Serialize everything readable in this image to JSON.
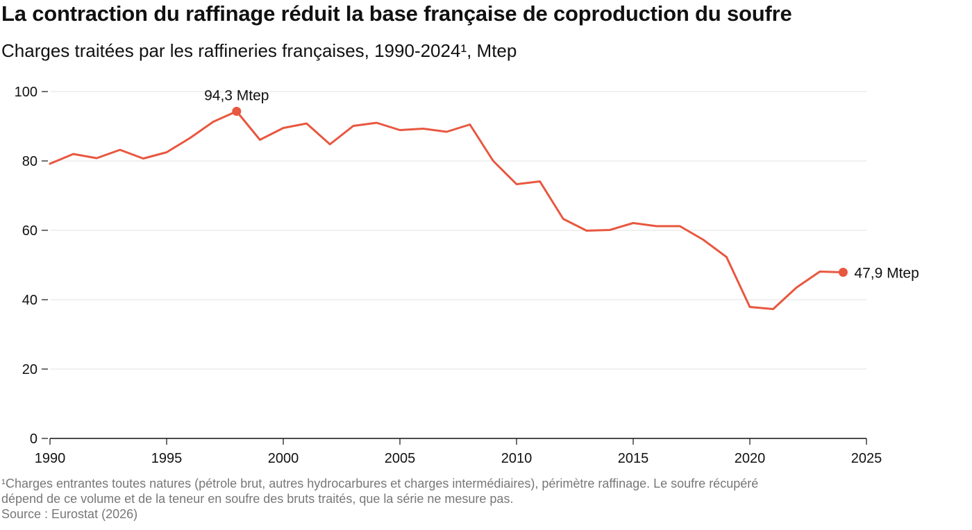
{
  "chart_data": {
    "type": "line",
    "title": "La contraction du raffinage réduit la base française de coproduction du soufre",
    "subtitle": "Charges traitées par les raffineries françaises, 1990-2024¹, Mtep",
    "xlim": [
      1990,
      2025
    ],
    "ylim": [
      0,
      100
    ],
    "x_ticks": [
      1990,
      1995,
      2000,
      2005,
      2010,
      2015,
      2020,
      2025
    ],
    "y_ticks": [
      0,
      20,
      40,
      60,
      80,
      100
    ],
    "grid": "horizontal",
    "series": [
      {
        "color": "#e8573f",
        "x": [
          1990,
          1991,
          1992,
          1993,
          1994,
          1995,
          1996,
          1997,
          1998,
          1999,
          2000,
          2001,
          2002,
          2003,
          2004,
          2005,
          2006,
          2007,
          2008,
          2009,
          2010,
          2011,
          2012,
          2013,
          2014,
          2015,
          2016,
          2017,
          2018,
          2019,
          2020,
          2021,
          2022,
          2023,
          2024
        ],
        "values": [
          79.2,
          82.0,
          80.8,
          83.2,
          80.7,
          82.5,
          86.6,
          91.3,
          94.3,
          86.1,
          89.5,
          90.8,
          84.8,
          90.1,
          91.0,
          88.9,
          89.3,
          88.4,
          90.5,
          80.0,
          73.3,
          74.1,
          63.3,
          59.9,
          60.1,
          62.1,
          61.2,
          61.2,
          57.3,
          52.3,
          37.9,
          37.3,
          43.5,
          48.1,
          47.9
        ]
      }
    ],
    "annotations": [
      {
        "x": 1998,
        "y": 94.3,
        "label": "94,3 Mtep"
      },
      {
        "x": 2024,
        "y": 47.9,
        "label": "47,9 Mtep"
      }
    ]
  },
  "footnote": {
    "line1": "¹Charges entrantes toutes natures (pétrole brut, autres hydrocarbures et charges intermédiaires), périmètre raffinage. Le soufre récupéré",
    "line2": "dépend de ce volume et de la teneur en soufre des bruts traités, que la série ne mesure pas.",
    "source": "Source : Eurostat (2026)"
  }
}
